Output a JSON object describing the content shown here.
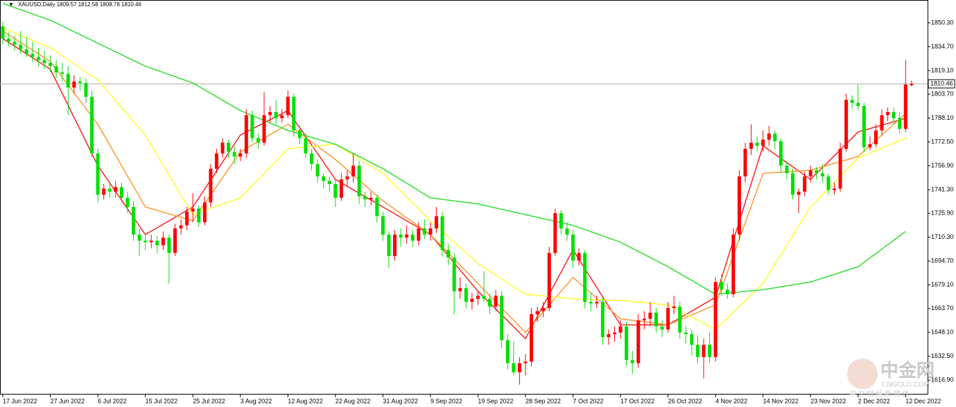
{
  "chart_data": {
    "type": "candlestick",
    "title": "XAUUSD,Daily  1809.57 1812.58 1808.78 1810.46",
    "up_color": "#ff0000",
    "down_color": "#00e000",
    "candles": [
      [
        1848,
        1851,
        1836,
        1840
      ],
      [
        1840,
        1844,
        1835,
        1838
      ],
      [
        1838,
        1842,
        1832,
        1836
      ],
      [
        1836,
        1845,
        1830,
        1833
      ],
      [
        1833,
        1841,
        1828,
        1830
      ],
      [
        1830,
        1838,
        1825,
        1828
      ],
      [
        1828,
        1834,
        1822,
        1826
      ],
      [
        1826,
        1832,
        1820,
        1824
      ],
      [
        1824,
        1829,
        1818,
        1822
      ],
      [
        1822,
        1826,
        1814,
        1818
      ],
      [
        1818,
        1824,
        1812,
        1817
      ],
      [
        1817,
        1822,
        1790,
        1808
      ],
      [
        1808,
        1816,
        1804,
        1812
      ],
      [
        1812,
        1815,
        1806,
        1811
      ],
      [
        1811,
        1814,
        1798,
        1802
      ],
      [
        1802,
        1806,
        1762,
        1765
      ],
      [
        1765,
        1768,
        1733,
        1738
      ],
      [
        1738,
        1745,
        1735,
        1742
      ],
      [
        1742,
        1746,
        1736,
        1740
      ],
      [
        1740,
        1747,
        1736,
        1743
      ],
      [
        1743,
        1746,
        1733,
        1736
      ],
      [
        1736,
        1740,
        1726,
        1730
      ],
      [
        1730,
        1734,
        1708,
        1712
      ],
      [
        1712,
        1716,
        1698,
        1708
      ],
      [
        1708,
        1712,
        1702,
        1707
      ],
      [
        1707,
        1712,
        1703,
        1708
      ],
      [
        1708,
        1711,
        1700,
        1705
      ],
      [
        1705,
        1714,
        1702,
        1710
      ],
      [
        1710,
        1712,
        1680,
        1700
      ],
      [
        1700,
        1719,
        1698,
        1716
      ],
      [
        1716,
        1722,
        1712,
        1718
      ],
      [
        1718,
        1730,
        1715,
        1727
      ],
      [
        1727,
        1739,
        1720,
        1729
      ],
      [
        1729,
        1731,
        1717,
        1720
      ],
      [
        1720,
        1737,
        1718,
        1733
      ],
      [
        1733,
        1758,
        1730,
        1755
      ],
      [
        1755,
        1768,
        1752,
        1765
      ],
      [
        1765,
        1775,
        1762,
        1772
      ],
      [
        1772,
        1774,
        1762,
        1766
      ],
      [
        1766,
        1770,
        1758,
        1763
      ],
      [
        1763,
        1768,
        1760,
        1765
      ],
      [
        1765,
        1794,
        1762,
        1790
      ],
      [
        1790,
        1793,
        1772,
        1775
      ],
      [
        1775,
        1778,
        1768,
        1772
      ],
      [
        1772,
        1805,
        1770,
        1790
      ],
      [
        1790,
        1796,
        1785,
        1792
      ],
      [
        1792,
        1800,
        1784,
        1788
      ],
      [
        1788,
        1794,
        1785,
        1790
      ],
      [
        1790,
        1806,
        1788,
        1802
      ],
      [
        1802,
        1804,
        1776,
        1780
      ],
      [
        1780,
        1783,
        1771,
        1775
      ],
      [
        1775,
        1778,
        1762,
        1765
      ],
      [
        1765,
        1768,
        1754,
        1758
      ],
      [
        1758,
        1761,
        1746,
        1750
      ],
      [
        1750,
        1752,
        1742,
        1747
      ],
      [
        1747,
        1750,
        1740,
        1745
      ],
      [
        1745,
        1748,
        1730,
        1736
      ],
      [
        1736,
        1752,
        1734,
        1748
      ],
      [
        1748,
        1754,
        1744,
        1750
      ],
      [
        1750,
        1765,
        1746,
        1757
      ],
      [
        1757,
        1760,
        1732,
        1737
      ],
      [
        1737,
        1740,
        1730,
        1735
      ],
      [
        1735,
        1740,
        1731,
        1736
      ],
      [
        1736,
        1738,
        1720,
        1724
      ],
      [
        1724,
        1727,
        1708,
        1712
      ],
      [
        1712,
        1714,
        1690,
        1698
      ],
      [
        1698,
        1715,
        1695,
        1712
      ],
      [
        1712,
        1716,
        1704,
        1710
      ],
      [
        1710,
        1718,
        1706,
        1712
      ],
      [
        1712,
        1715,
        1704,
        1708
      ],
      [
        1708,
        1720,
        1705,
        1716
      ],
      [
        1716,
        1722,
        1709,
        1712
      ],
      [
        1712,
        1720,
        1708,
        1716
      ],
      [
        1716,
        1730,
        1713,
        1724
      ],
      [
        1724,
        1727,
        1698,
        1702
      ],
      [
        1702,
        1706,
        1692,
        1697
      ],
      [
        1697,
        1700,
        1660,
        1675
      ],
      [
        1675,
        1684,
        1670,
        1677
      ],
      [
        1677,
        1680,
        1664,
        1668
      ],
      [
        1668,
        1674,
        1663,
        1670
      ],
      [
        1670,
        1675,
        1666,
        1672
      ],
      [
        1672,
        1688,
        1668,
        1670
      ],
      [
        1670,
        1673,
        1660,
        1665
      ],
      [
        1665,
        1676,
        1662,
        1672
      ],
      [
        1672,
        1675,
        1638,
        1643
      ],
      [
        1643,
        1647,
        1624,
        1628
      ],
      [
        1628,
        1642,
        1620,
        1622
      ],
      [
        1622,
        1632,
        1614,
        1628
      ],
      [
        1628,
        1634,
        1620,
        1629
      ],
      [
        1629,
        1664,
        1626,
        1660
      ],
      [
        1660,
        1665,
        1655,
        1662
      ],
      [
        1662,
        1668,
        1658,
        1664
      ],
      [
        1664,
        1704,
        1662,
        1700
      ],
      [
        1700,
        1729,
        1698,
        1726
      ],
      [
        1726,
        1728,
        1712,
        1716
      ],
      [
        1716,
        1720,
        1708,
        1712
      ],
      [
        1712,
        1715,
        1690,
        1695
      ],
      [
        1695,
        1703,
        1692,
        1700
      ],
      [
        1700,
        1702,
        1664,
        1668
      ],
      [
        1668,
        1674,
        1662,
        1667
      ],
      [
        1667,
        1672,
        1664,
        1668
      ],
      [
        1668,
        1671,
        1640,
        1645
      ],
      [
        1645,
        1650,
        1640,
        1647
      ],
      [
        1647,
        1652,
        1642,
        1648
      ],
      [
        1648,
        1656,
        1644,
        1652
      ],
      [
        1652,
        1655,
        1626,
        1630
      ],
      [
        1630,
        1636,
        1621,
        1628
      ],
      [
        1628,
        1660,
        1625,
        1656
      ],
      [
        1656,
        1662,
        1650,
        1657
      ],
      [
        1657,
        1668,
        1652,
        1661
      ],
      [
        1661,
        1664,
        1648,
        1652
      ],
      [
        1652,
        1656,
        1645,
        1650
      ],
      [
        1650,
        1668,
        1648,
        1664
      ],
      [
        1664,
        1672,
        1660,
        1665
      ],
      [
        1665,
        1668,
        1644,
        1648
      ],
      [
        1648,
        1652,
        1641,
        1647
      ],
      [
        1647,
        1650,
        1633,
        1640
      ],
      [
        1640,
        1646,
        1628,
        1632
      ],
      [
        1632,
        1644,
        1618,
        1640
      ],
      [
        1640,
        1648,
        1628,
        1632
      ],
      [
        1632,
        1684,
        1629,
        1681
      ],
      [
        1681,
        1686,
        1672,
        1676
      ],
      [
        1676,
        1680,
        1670,
        1673
      ],
      [
        1673,
        1716,
        1671,
        1712
      ],
      [
        1712,
        1754,
        1708,
        1750
      ],
      [
        1750,
        1772,
        1746,
        1768
      ],
      [
        1768,
        1784,
        1764,
        1772
      ],
      [
        1772,
        1776,
        1766,
        1770
      ],
      [
        1770,
        1780,
        1766,
        1774
      ],
      [
        1774,
        1783,
        1770,
        1778
      ],
      [
        1778,
        1780,
        1768,
        1773
      ],
      [
        1773,
        1775,
        1752,
        1757
      ],
      [
        1757,
        1760,
        1748,
        1752
      ],
      [
        1752,
        1755,
        1735,
        1738
      ],
      [
        1738,
        1742,
        1726,
        1740
      ],
      [
        1740,
        1753,
        1737,
        1750
      ],
      [
        1750,
        1757,
        1746,
        1754
      ],
      [
        1754,
        1756,
        1748,
        1752
      ],
      [
        1752,
        1758,
        1746,
        1750
      ],
      [
        1750,
        1752,
        1738,
        1741
      ],
      [
        1741,
        1746,
        1738,
        1742
      ],
      [
        1742,
        1772,
        1740,
        1768
      ],
      [
        1768,
        1804,
        1766,
        1800
      ],
      [
        1800,
        1803,
        1794,
        1798
      ],
      [
        1798,
        1810,
        1793,
        1796
      ],
      [
        1796,
        1798,
        1766,
        1769
      ],
      [
        1769,
        1776,
        1767,
        1771
      ],
      [
        1771,
        1784,
        1769,
        1780
      ],
      [
        1780,
        1794,
        1777,
        1790
      ],
      [
        1790,
        1795,
        1786,
        1792
      ],
      [
        1792,
        1795,
        1784,
        1788
      ],
      [
        1788,
        1792,
        1778,
        1781
      ],
      [
        1781,
        1826,
        1779,
        1810
      ],
      [
        1809.57,
        1812.58,
        1808.78,
        1810.46
      ]
    ],
    "ma_x": [
      0,
      8,
      16,
      24,
      32,
      40,
      48,
      56,
      64,
      72,
      80,
      88,
      96,
      104,
      112,
      120,
      128,
      136,
      144,
      152
    ],
    "ma": [
      {
        "color": "#ff2020",
        "values": [
          1840,
          1820,
          1757,
          1712,
          1730,
          1777,
          1793,
          1748,
          1730,
          1712,
          1675,
          1644,
          1702,
          1653,
          1653,
          1671,
          1770,
          1748,
          1779,
          1788
        ]
      },
      {
        "color": "#ff9933",
        "values": [
          1845,
          1825,
          1784,
          1730,
          1721,
          1766,
          1784,
          1761,
          1734,
          1712,
          1680,
          1648,
          1684,
          1657,
          1653,
          1666,
          1752,
          1754,
          1763,
          1791
        ]
      },
      {
        "color": "#ffff33",
        "values": [
          1847,
          1834,
          1813,
          1777,
          1725,
          1736,
          1768,
          1771,
          1752,
          1721,
          1693,
          1673,
          1670,
          1669,
          1666,
          1650,
          1680,
          1730,
          1762,
          1775
        ]
      },
      {
        "color": "#33dd33",
        "values": [
          1863,
          1852,
          1837,
          1822,
          1811,
          1793,
          1780,
          1771,
          1755,
          1736,
          1732,
          1725,
          1718,
          1707,
          1691,
          1673,
          1676,
          1681,
          1691,
          1714
        ]
      }
    ],
    "xlim": [
      -0.47,
      155.7
    ],
    "ylim": [
      1607.5,
      1865.2
    ],
    "xticks": [
      {
        "value": 0,
        "label": "17 Jun 2022"
      },
      {
        "value": 8,
        "label": "27 Jun 2022"
      },
      {
        "value": 16,
        "label": "6 Jul 2022"
      },
      {
        "value": 24,
        "label": "15 Jul 2022"
      },
      {
        "value": 32,
        "label": "25 Jul 2022"
      },
      {
        "value": 40,
        "label": "3 Aug 2022"
      },
      {
        "value": 48,
        "label": "12 Aug 2022"
      },
      {
        "value": 56,
        "label": "22 Aug 2022"
      },
      {
        "value": 64,
        "label": "31 Aug 2022"
      },
      {
        "value": 72,
        "label": "9 Sep 2022"
      },
      {
        "value": 80,
        "label": "19 Sep 2022"
      },
      {
        "value": 88,
        "label": "28 Sep 2022"
      },
      {
        "value": 96,
        "label": "7 Oct 2022"
      },
      {
        "value": 104,
        "label": "17 Oct 2022"
      },
      {
        "value": 112,
        "label": "26 Oct 2022"
      },
      {
        "value": 120,
        "label": "4 Nov 2022"
      },
      {
        "value": 128,
        "label": "14 Nov 2022"
      },
      {
        "value": 136,
        "label": "23 Nov 2022"
      },
      {
        "value": 144,
        "label": "2 Dec 2022"
      },
      {
        "value": 152,
        "label": "12 Dec 2022"
      }
    ],
    "yticks": [
      {
        "value": 1850.3,
        "label": "1850.30"
      },
      {
        "value": 1834.7,
        "label": "1834.70"
      },
      {
        "value": 1819.1,
        "label": "1819.10"
      },
      {
        "value": 1803.7,
        "label": "1803.70"
      },
      {
        "value": 1788.1,
        "label": "1788.10"
      },
      {
        "value": 1772.5,
        "label": "1772.50"
      },
      {
        "value": 1756.9,
        "label": "1756.90"
      },
      {
        "value": 1741.3,
        "label": "1741.30"
      },
      {
        "value": 1725.9,
        "label": "1725.90"
      },
      {
        "value": 1710.3,
        "label": "1710.30"
      },
      {
        "value": 1694.7,
        "label": "1694.70"
      },
      {
        "value": 1679.1,
        "label": "1679.10"
      },
      {
        "value": 1663.7,
        "label": "1663.70"
      },
      {
        "value": 1648.1,
        "label": "1648.10"
      },
      {
        "value": 1632.5,
        "label": "1632.50"
      },
      {
        "value": 1616.9,
        "label": "1616.90"
      }
    ],
    "current_price": {
      "value": 1810.46,
      "label": "1810.46"
    }
  },
  "watermark": {
    "logo": "中金网",
    "site": "CNGOLD.COM",
    "slogan": "中 文 财 经 新 媒 体"
  }
}
